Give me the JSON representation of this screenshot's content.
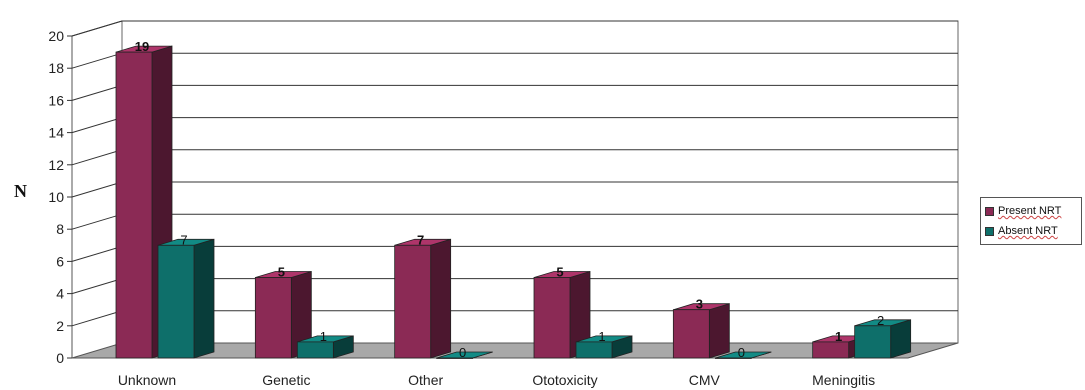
{
  "chart_data": {
    "type": "bar",
    "categories": [
      "Unknown",
      "Genetic",
      "Other",
      "Ototoxicity",
      "CMV",
      "Meningitis"
    ],
    "series": [
      {
        "name": "Present NRT",
        "values": [
          19,
          5,
          7,
          5,
          3,
          1
        ],
        "color": "#8b2a55"
      },
      {
        "name": "Absent NRT",
        "values": [
          7,
          1,
          0,
          1,
          0,
          2
        ],
        "color": "#0e6f6a"
      }
    ],
    "title": "",
    "xlabel": "",
    "ylabel": "N",
    "ylim": [
      0,
      20
    ],
    "yticks": [
      0,
      2,
      4,
      6,
      8,
      10,
      12,
      14,
      16,
      18,
      20
    ],
    "data_labels": [
      [
        "19",
        "5",
        "7",
        "5",
        "3",
        "1"
      ],
      [
        "7",
        "1",
        "0",
        "1",
        "0",
        "2"
      ]
    ],
    "grid": true,
    "legend_position": "right"
  }
}
